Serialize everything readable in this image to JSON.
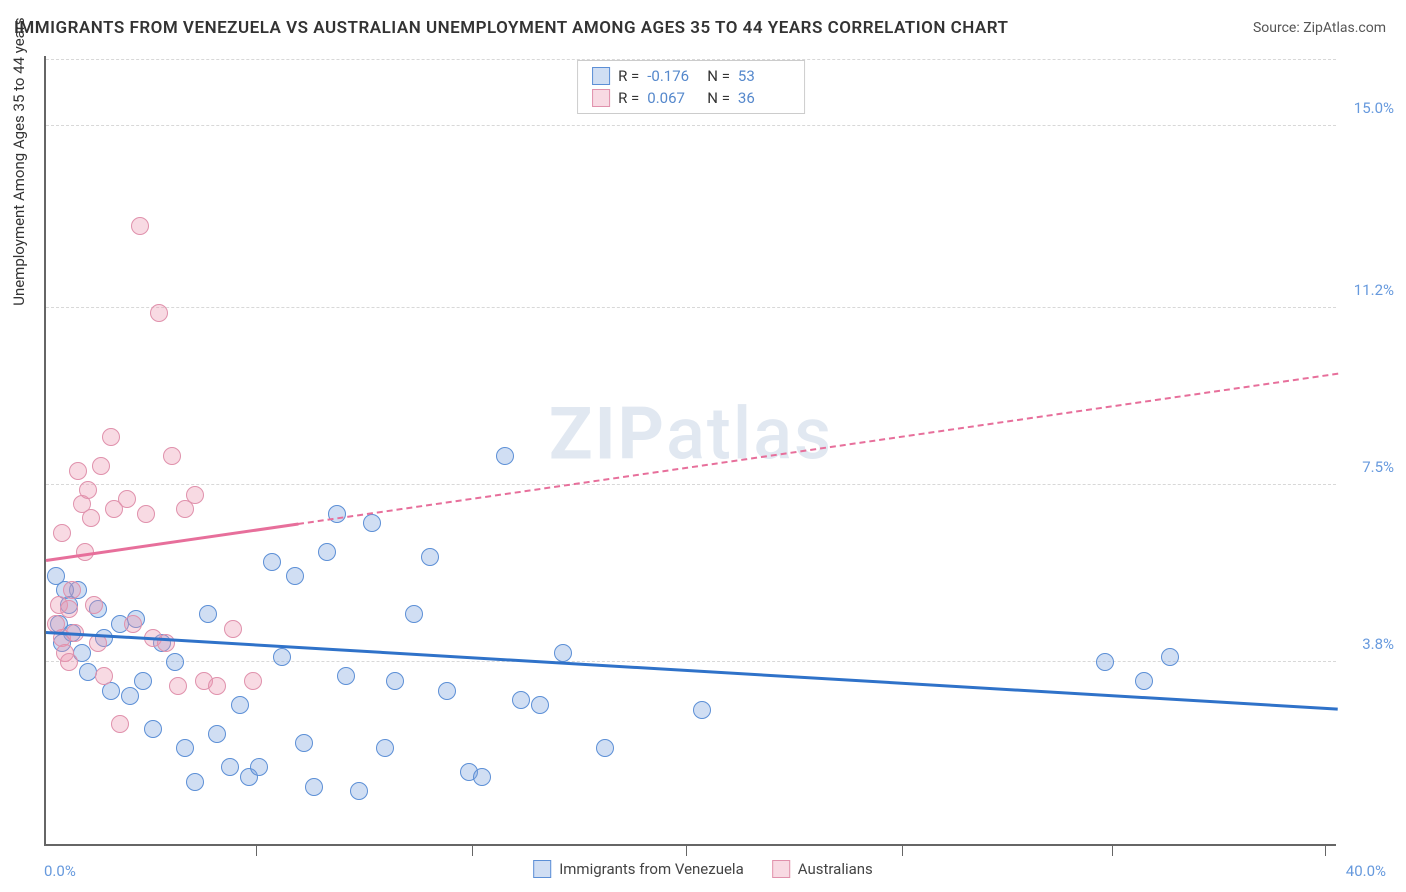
{
  "title": "IMMIGRANTS FROM VENEZUELA VS AUSTRALIAN UNEMPLOYMENT AMONG AGES 35 TO 44 YEARS CORRELATION CHART",
  "source_prefix": "Source: ",
  "source_name": "ZipAtlas.com",
  "ylabel": "Unemployment Among Ages 35 to 44 years",
  "watermark_bold": "ZIP",
  "watermark_rest": "atlas",
  "chart": {
    "type": "scatter",
    "xlim": [
      0,
      40
    ],
    "ylim": [
      0,
      16.5
    ],
    "xmin_label": "0.0%",
    "xmax_label": "40.0%",
    "ytick_labels": [
      "3.8%",
      "7.5%",
      "11.2%",
      "15.0%"
    ],
    "ytick_vals": [
      3.8,
      7.5,
      11.2,
      15.0
    ],
    "xtick_vals": [
      6.5,
      13.2,
      19.8,
      26.5,
      33.0,
      39.6
    ],
    "grid_color": "#d8d8d8",
    "background": "#ffffff",
    "marker_radius": 9,
    "marker_stroke": 1.5,
    "series": [
      {
        "name": "Immigrants from Venezuela",
        "color_fill": "rgba(120,160,220,0.35)",
        "color_stroke": "#5c8fd6",
        "R": "-0.176",
        "N": "53",
        "trend": {
          "x1": 0,
          "y1": 4.4,
          "x2": 40,
          "y2": 2.8,
          "dash_after_x": 40,
          "color": "#2f72c9"
        },
        "points": [
          [
            0.3,
            5.6
          ],
          [
            0.4,
            4.6
          ],
          [
            0.5,
            4.2
          ],
          [
            0.7,
            5.0
          ],
          [
            0.8,
            4.4
          ],
          [
            1.0,
            5.3
          ],
          [
            1.1,
            4.0
          ],
          [
            1.3,
            3.6
          ],
          [
            1.6,
            4.9
          ],
          [
            1.8,
            4.3
          ],
          [
            2.0,
            3.2
          ],
          [
            2.3,
            4.6
          ],
          [
            2.6,
            3.1
          ],
          [
            2.8,
            4.7
          ],
          [
            3.0,
            3.4
          ],
          [
            3.3,
            2.4
          ],
          [
            3.6,
            4.2
          ],
          [
            4.0,
            3.8
          ],
          [
            4.3,
            2.0
          ],
          [
            4.6,
            1.3
          ],
          [
            5.0,
            4.8
          ],
          [
            5.3,
            2.3
          ],
          [
            5.7,
            1.6
          ],
          [
            6.0,
            2.9
          ],
          [
            6.3,
            1.4
          ],
          [
            6.6,
            1.6
          ],
          [
            7.0,
            5.9
          ],
          [
            7.3,
            3.9
          ],
          [
            7.7,
            5.6
          ],
          [
            8.0,
            2.1
          ],
          [
            8.3,
            1.2
          ],
          [
            8.7,
            6.1
          ],
          [
            9.0,
            6.9
          ],
          [
            9.3,
            3.5
          ],
          [
            9.7,
            1.1
          ],
          [
            10.1,
            6.7
          ],
          [
            10.5,
            2.0
          ],
          [
            10.8,
            3.4
          ],
          [
            11.4,
            4.8
          ],
          [
            11.9,
            6.0
          ],
          [
            12.4,
            3.2
          ],
          [
            13.1,
            1.5
          ],
          [
            13.5,
            1.4
          ],
          [
            14.2,
            8.1
          ],
          [
            14.7,
            3.0
          ],
          [
            15.3,
            2.9
          ],
          [
            16.0,
            4.0
          ],
          [
            17.3,
            2.0
          ],
          [
            20.3,
            2.8
          ],
          [
            32.8,
            3.8
          ],
          [
            34.0,
            3.4
          ],
          [
            34.8,
            3.9
          ],
          [
            0.6,
            5.3
          ]
        ]
      },
      {
        "name": "Australians",
        "color_fill": "rgba(235,150,175,0.35)",
        "color_stroke": "#e091ac",
        "R": "0.067",
        "N": "36",
        "trend": {
          "x1": 0,
          "y1": 5.9,
          "x2": 40,
          "y2": 9.8,
          "dash_after_x": 7.8,
          "color": "#e76f9b"
        },
        "points": [
          [
            0.3,
            4.6
          ],
          [
            0.4,
            5.0
          ],
          [
            0.5,
            4.3
          ],
          [
            0.6,
            4.0
          ],
          [
            0.7,
            4.9
          ],
          [
            0.8,
            5.3
          ],
          [
            0.9,
            4.4
          ],
          [
            1.0,
            7.8
          ],
          [
            1.1,
            7.1
          ],
          [
            1.2,
            6.1
          ],
          [
            1.3,
            7.4
          ],
          [
            1.5,
            5.0
          ],
          [
            1.6,
            4.2
          ],
          [
            1.7,
            7.9
          ],
          [
            1.8,
            3.5
          ],
          [
            2.0,
            8.5
          ],
          [
            2.1,
            7.0
          ],
          [
            2.3,
            2.5
          ],
          [
            2.5,
            7.2
          ],
          [
            2.7,
            4.6
          ],
          [
            2.9,
            12.9
          ],
          [
            3.1,
            6.9
          ],
          [
            3.3,
            4.3
          ],
          [
            3.5,
            11.1
          ],
          [
            3.7,
            4.2
          ],
          [
            3.9,
            8.1
          ],
          [
            4.1,
            3.3
          ],
          [
            4.3,
            7.0
          ],
          [
            4.6,
            7.3
          ],
          [
            4.9,
            3.4
          ],
          [
            5.3,
            3.3
          ],
          [
            5.8,
            4.5
          ],
          [
            6.4,
            3.4
          ],
          [
            0.5,
            6.5
          ],
          [
            0.7,
            3.8
          ],
          [
            1.4,
            6.8
          ]
        ]
      }
    ]
  },
  "legend_top": {
    "R_label": "R =",
    "N_label": "N ="
  },
  "bottom_legend_labels": [
    "Immigrants from Venezuela",
    "Australians"
  ]
}
